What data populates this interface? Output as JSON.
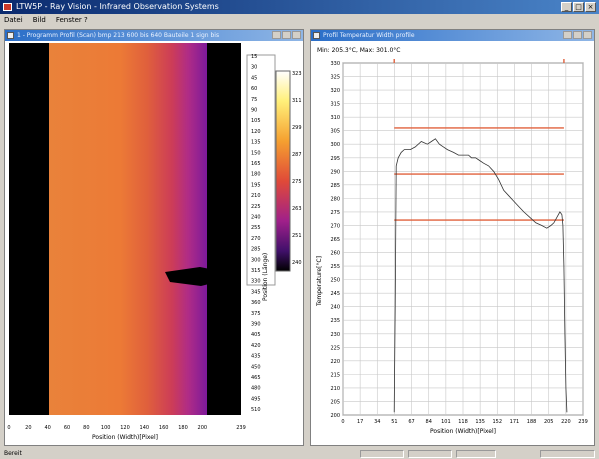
{
  "window": {
    "title": "LTW5P - Ray Vision - Infrared Observation Systems"
  },
  "menu": [
    "Datei",
    "Bild",
    "Fenster ?"
  ],
  "left_window": {
    "title": "1 - Programm Profil (Scan) bmp 213 600 bis 640 Bauteile 1 sign bis",
    "ylabel": "Position (Länge)",
    "xlabel": "Position (Width)[Pixel]",
    "y_ticks": [
      "15",
      "30",
      "45",
      "60",
      "75",
      "90",
      "105",
      "120",
      "135",
      "150",
      "165",
      "180",
      "195",
      "210",
      "225",
      "240",
      "255",
      "270",
      "285",
      "300",
      "315",
      "330",
      "345",
      "360",
      "375",
      "390",
      "405",
      "420",
      "435",
      "450",
      "465",
      "480",
      "495",
      "510"
    ],
    "x_ticks": [
      "0",
      "20",
      "40",
      "60",
      "80",
      "100",
      "120",
      "140",
      "160",
      "180",
      "200",
      "",
      "239"
    ],
    "legend_ticks": [
      "323",
      "311",
      "299",
      "287",
      "275",
      "263",
      "251",
      "240"
    ]
  },
  "right_window": {
    "title": "Profil Temperatur Width profile",
    "minmax": "Min: 205.3°C, Max: 301.0°C"
  },
  "status": {
    "text": "Bereit"
  },
  "chart_data": {
    "type": "line",
    "title": "",
    "xlabel": "Position (Width)[Pixel]",
    "ylabel": "Temperature[°C]",
    "xlim": [
      0,
      239
    ],
    "ylim": [
      200,
      330
    ],
    "x_ticks": [
      "0",
      "17",
      "34",
      "51",
      "67",
      "84",
      "101",
      "118",
      "135",
      "152",
      "171",
      "188",
      "205",
      "220",
      "239"
    ],
    "y_ticks": [
      "330",
      "325",
      "320",
      "315",
      "310",
      "305",
      "300",
      "295",
      "290",
      "285",
      "280",
      "275",
      "270",
      "265",
      "260",
      "255",
      "250",
      "245",
      "240",
      "235",
      "230",
      "225",
      "220",
      "215",
      "210",
      "205",
      "200"
    ],
    "reference_lines": [
      306,
      289,
      272
    ],
    "markers_x": [
      51,
      220
    ],
    "series": [
      {
        "x": [
          51,
          52,
          53,
          55,
          58,
          61,
          64,
          67,
          72,
          78,
          84,
          88,
          92,
          96,
          100,
          104,
          110,
          115,
          120,
          125,
          128,
          132,
          136,
          140,
          145,
          150,
          155,
          160,
          165,
          170,
          175,
          180,
          186,
          192,
          198,
          203,
          207,
          210,
          213,
          216,
          218,
          219,
          220,
          221,
          222,
          223
        ],
        "y": [
          201,
          240,
          292,
          295,
          297,
          298,
          298,
          298,
          299,
          301,
          300,
          301,
          302,
          300,
          299,
          298,
          297,
          296,
          296,
          296,
          295,
          295,
          294,
          293,
          292,
          290,
          287,
          283,
          281,
          279,
          277,
          275,
          273,
          271,
          270,
          269,
          270,
          271,
          273,
          275,
          274,
          270,
          255,
          230,
          210,
          201
        ]
      }
    ]
  }
}
